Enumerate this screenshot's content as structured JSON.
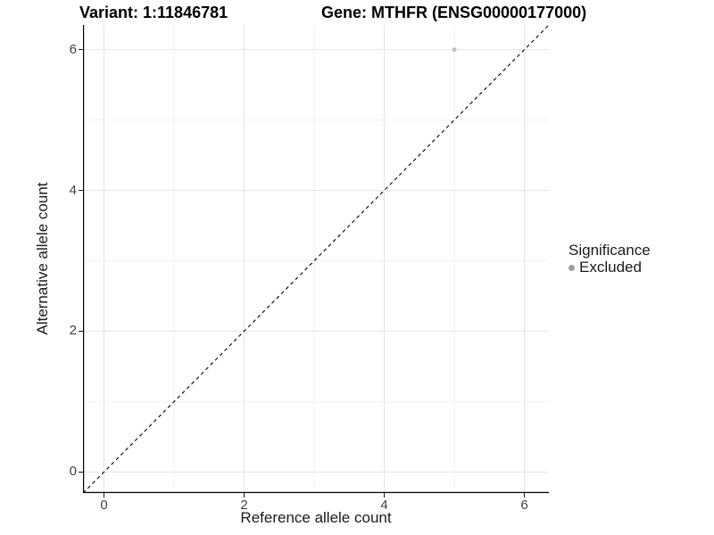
{
  "titles": {
    "variant": "Variant: 1:11846781",
    "gene": "Gene: MTHFR (ENSG00000177000)"
  },
  "axes": {
    "x_label": "Reference allele count",
    "y_label": "Alternative allele count",
    "x_tick_labels": [
      "0",
      "2",
      "4",
      "6"
    ],
    "y_tick_labels": [
      "0",
      "2",
      "4",
      "6"
    ]
  },
  "legend": {
    "title": "Significance",
    "items": [
      {
        "label": "Excluded",
        "color": "#9e9e9e",
        "marker": "circle-icon"
      }
    ]
  },
  "colors": {
    "background": "#ffffff",
    "grid_major": "#e4e4e4",
    "grid_minor": "#f0f0f0",
    "axis_line": "#000000",
    "reference_line": "#000000",
    "point": "#c0c0c0",
    "tick_text": "#404040"
  },
  "chart_data": {
    "type": "scatter",
    "title": "Variant: 1:11846781 | Gene: MTHFR (ENSG00000177000)",
    "xlabel": "Reference allele count",
    "ylabel": "Alternative allele count",
    "xlim": [
      -0.3,
      6.35
    ],
    "ylim": [
      -0.3,
      6.35
    ],
    "x_ticks": [
      0,
      2,
      4,
      6
    ],
    "y_ticks": [
      0,
      2,
      4,
      6
    ],
    "x_minor_ticks": [
      1,
      3,
      5
    ],
    "y_minor_ticks": [
      1,
      3,
      5
    ],
    "grid": true,
    "legend_position": "right",
    "series": [
      {
        "name": "Excluded",
        "color": "#c0c0c0",
        "points": [
          {
            "x": 5,
            "y": 6,
            "r": 2.5
          }
        ]
      }
    ],
    "reference_line": {
      "type": "identity",
      "equation": "y = x",
      "style": "dashed",
      "color": "#000000"
    }
  }
}
